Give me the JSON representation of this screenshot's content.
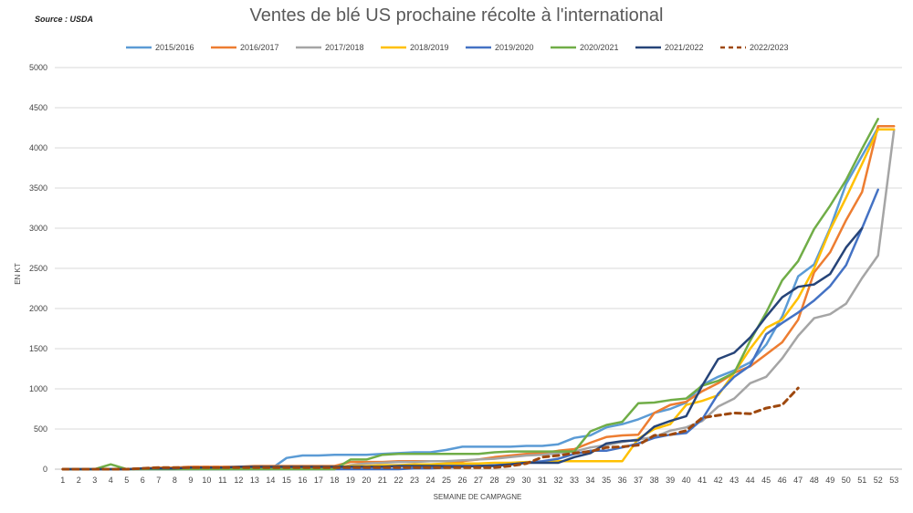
{
  "source": "Source : USDA",
  "chart_data": {
    "type": "line",
    "title": "Ventes de blé US prochaine récolte à l'international",
    "xlabel": "SEMAINE DE CAMPAGNE",
    "ylabel": "EN KT",
    "ylim": [
      0,
      5000
    ],
    "yticks": [
      0,
      500,
      1000,
      1500,
      2000,
      2500,
      3000,
      3500,
      4000,
      4500,
      5000
    ],
    "x": [
      1,
      2,
      3,
      4,
      5,
      6,
      7,
      8,
      9,
      10,
      11,
      12,
      13,
      14,
      15,
      16,
      17,
      18,
      19,
      20,
      21,
      22,
      23,
      24,
      25,
      26,
      27,
      28,
      29,
      30,
      31,
      32,
      33,
      34,
      35,
      36,
      37,
      38,
      39,
      40,
      41,
      42,
      43,
      44,
      45,
      46,
      47,
      48,
      49,
      50,
      51,
      52,
      53
    ],
    "grid": "horizontal",
    "legend_position": "top",
    "series": [
      {
        "name": "2015/2016",
        "color": "#5B9BD5",
        "dash": "solid",
        "values": [
          0,
          0,
          0,
          0,
          0,
          0,
          0,
          0,
          0,
          0,
          0,
          0,
          0,
          0,
          140,
          170,
          170,
          180,
          180,
          180,
          190,
          200,
          210,
          210,
          240,
          280,
          280,
          280,
          280,
          290,
          290,
          310,
          390,
          420,
          520,
          560,
          620,
          700,
          750,
          830,
          1050,
          1150,
          1230,
          1330,
          1550,
          1900,
          2400,
          2550,
          3000,
          3550,
          3900,
          4250,
          null
        ]
      },
      {
        "name": "2016/2017",
        "color": "#ED7D31",
        "dash": "solid",
        "values": [
          0,
          0,
          0,
          0,
          0,
          10,
          20,
          20,
          30,
          30,
          30,
          30,
          40,
          40,
          40,
          40,
          40,
          40,
          90,
          90,
          90,
          100,
          100,
          100,
          100,
          100,
          120,
          150,
          170,
          190,
          200,
          230,
          250,
          330,
          400,
          420,
          430,
          700,
          800,
          840,
          970,
          1070,
          1200,
          1280,
          1430,
          1580,
          1860,
          2450,
          2700,
          3100,
          3450,
          4270,
          4270
        ]
      },
      {
        "name": "2017/2018",
        "color": "#A5A5A5",
        "dash": "solid",
        "values": [
          0,
          0,
          0,
          0,
          0,
          0,
          0,
          0,
          0,
          0,
          0,
          0,
          0,
          0,
          0,
          0,
          0,
          0,
          50,
          70,
          80,
          90,
          90,
          100,
          100,
          110,
          120,
          130,
          150,
          170,
          180,
          200,
          220,
          270,
          300,
          340,
          370,
          400,
          480,
          520,
          600,
          780,
          880,
          1070,
          1150,
          1380,
          1660,
          1880,
          1930,
          2060,
          2380,
          2660,
          4220
        ]
      },
      {
        "name": "2018/2019",
        "color": "#FFC000",
        "dash": "solid",
        "values": [
          0,
          0,
          0,
          0,
          0,
          10,
          10,
          10,
          20,
          20,
          20,
          20,
          30,
          30,
          30,
          30,
          30,
          30,
          40,
          40,
          50,
          50,
          60,
          60,
          70,
          70,
          70,
          80,
          80,
          90,
          90,
          100,
          100,
          100,
          100,
          100,
          380,
          500,
          560,
          800,
          850,
          920,
          1200,
          1500,
          1760,
          1860,
          2130,
          2500,
          2980,
          3380,
          3800,
          4230,
          4230
        ]
      },
      {
        "name": "2019/2020",
        "color": "#4472C4",
        "dash": "solid",
        "values": [
          0,
          0,
          0,
          0,
          0,
          0,
          0,
          0,
          0,
          0,
          0,
          0,
          0,
          0,
          0,
          0,
          0,
          0,
          0,
          0,
          0,
          0,
          10,
          10,
          20,
          30,
          40,
          50,
          60,
          80,
          100,
          130,
          190,
          230,
          230,
          270,
          320,
          390,
          430,
          450,
          620,
          940,
          1150,
          1290,
          1680,
          1820,
          1950,
          2100,
          2280,
          2540,
          3000,
          3480,
          null
        ]
      },
      {
        "name": "2020/2021",
        "color": "#70AD47",
        "dash": "solid",
        "values": [
          0,
          0,
          0,
          60,
          0,
          0,
          0,
          0,
          0,
          0,
          0,
          0,
          0,
          0,
          0,
          0,
          0,
          0,
          120,
          120,
          180,
          190,
          190,
          190,
          190,
          190,
          190,
          210,
          220,
          220,
          220,
          220,
          220,
          470,
          550,
          590,
          820,
          830,
          860,
          880,
          1040,
          1100,
          1200,
          1600,
          1950,
          2350,
          2590,
          2990,
          3280,
          3600,
          3990,
          4360,
          null
        ]
      },
      {
        "name": "2021/2022",
        "color": "#264478",
        "dash": "solid",
        "values": [
          0,
          0,
          0,
          0,
          0,
          10,
          10,
          10,
          20,
          20,
          20,
          30,
          30,
          30,
          30,
          30,
          30,
          30,
          30,
          30,
          30,
          40,
          40,
          40,
          40,
          40,
          40,
          40,
          60,
          80,
          80,
          80,
          150,
          200,
          320,
          350,
          360,
          530,
          600,
          660,
          1040,
          1370,
          1450,
          1640,
          1900,
          2140,
          2270,
          2300,
          2430,
          2760,
          3000,
          null,
          null
        ]
      },
      {
        "name": "2022/2023",
        "color": "#9E480E",
        "dash": "dashed",
        "values": [
          0,
          0,
          0,
          0,
          0,
          10,
          20,
          20,
          20,
          20,
          20,
          20,
          20,
          20,
          20,
          20,
          20,
          20,
          20,
          20,
          20,
          20,
          20,
          20,
          20,
          20,
          20,
          20,
          40,
          70,
          150,
          170,
          200,
          220,
          270,
          280,
          300,
          420,
          430,
          480,
          640,
          670,
          700,
          690,
          760,
          800,
          1010,
          null,
          null,
          null,
          null,
          null,
          null
        ]
      }
    ]
  }
}
